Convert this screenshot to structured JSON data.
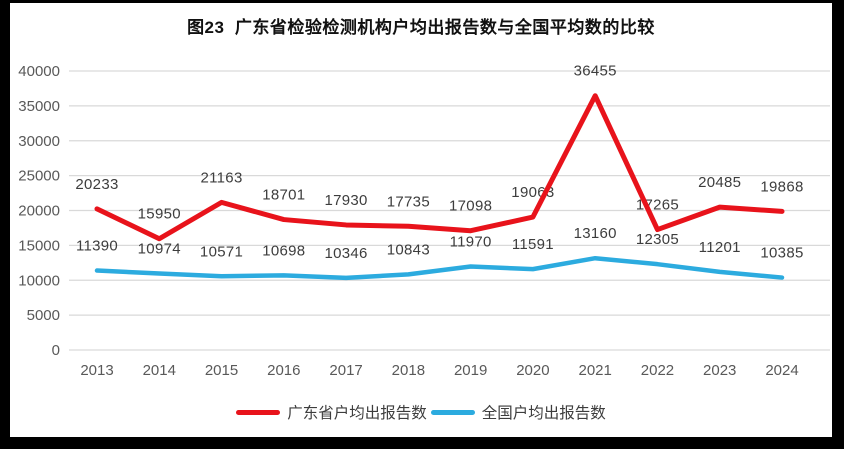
{
  "title": "图23  广东省检验检测机构户均出报告数与全国平均数的比较",
  "chart_data": {
    "type": "line",
    "categories": [
      "2013",
      "2014",
      "2015",
      "2016",
      "2017",
      "2018",
      "2019",
      "2020",
      "2021",
      "2022",
      "2023",
      "2024"
    ],
    "series": [
      {
        "name": "广东省户均出报告数",
        "color": "#e8131b",
        "line_width": 5,
        "values": [
          20233,
          15950,
          21163,
          18701,
          17930,
          17735,
          17098,
          19063,
          36455,
          17265,
          20485,
          19868
        ]
      },
      {
        "name": "全国户均出报告数",
        "color": "#2cabdf",
        "line_width": 4.5,
        "values": [
          11390,
          10974,
          10571,
          10698,
          10346,
          10843,
          11970,
          11591,
          13160,
          12305,
          11201,
          10385
        ]
      }
    ],
    "ylim": [
      0,
      40000
    ],
    "ytick_step": 5000,
    "yticks": [
      "0",
      "5000",
      "10000",
      "15000",
      "20000",
      "25000",
      "30000",
      "35000",
      "40000"
    ],
    "grid": "horizontal",
    "show_data_labels": true,
    "legend_position": "bottom"
  },
  "styles": {
    "background": "#ffffff",
    "frame_color": "#000000",
    "grid_color": "#d9d9d9",
    "axis_label_color": "#595959",
    "data_label_color": "#3d3d3d",
    "title_color": "#111111",
    "legend_text_color": "#3d3d3d"
  }
}
